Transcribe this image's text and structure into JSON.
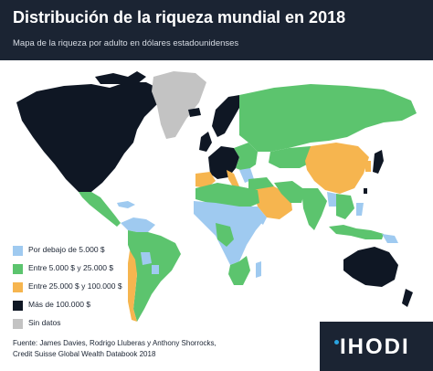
{
  "header": {
    "title": "Distribución de la riqueza mundial en 2018",
    "subtitle": "Mapa de la riqueza por adulto en dólares estadounidenses"
  },
  "legend": {
    "items": [
      {
        "label": "Por debajo de 5.000 $",
        "color": "#9fcaf0"
      },
      {
        "label": "Entre 5.000 $ y 25.000 $",
        "color": "#5cc46e"
      },
      {
        "label": "Entre 25.000 $ y 100.000 $",
        "color": "#f6b54f"
      },
      {
        "label": "Más de 100.000 $",
        "color": "#0f1724"
      },
      {
        "label": "Sin datos",
        "color": "#c3c3c3"
      }
    ]
  },
  "source": {
    "line1": "Fuente: James Davies, Rodrigo Lluberas y Anthony Shorrocks,",
    "line2": "Credit Suisse Global Wealth Databook 2018"
  },
  "brand": {
    "name": "IHODI"
  },
  "colors": {
    "header_bg": "#1b2433",
    "ocean": "#ffffff",
    "low": "#9fcaf0",
    "mid": "#5cc46e",
    "high": "#f6b54f",
    "top": "#0f1724",
    "nodata": "#c3c3c3"
  }
}
